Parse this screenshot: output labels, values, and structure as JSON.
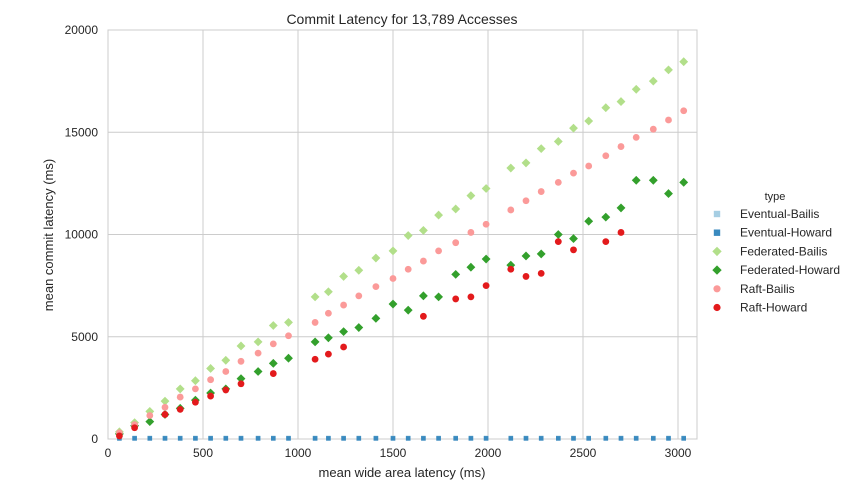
{
  "chart_data": {
    "type": "scatter",
    "title": "Commit Latency for 13,789 Accesses",
    "xlabel": "mean wide area latency (ms)",
    "ylabel": "mean commit latency (ms)",
    "xlim": [
      0,
      3100
    ],
    "ylim": [
      0,
      20000
    ],
    "xticks": [
      0,
      500,
      1000,
      1500,
      2000,
      2500,
      3000
    ],
    "yticks": [
      0,
      5000,
      10000,
      15000,
      20000
    ],
    "grid": true,
    "legend": {
      "title": "type",
      "placement": "right"
    },
    "series": [
      {
        "name": "Eventual-Bailis",
        "color": "#a6cee3",
        "marker": "square",
        "x": [
          60,
          140,
          220,
          300,
          380,
          460,
          540,
          620,
          700,
          790,
          870,
          950,
          1090,
          1160,
          1240,
          1320,
          1410,
          1500,
          1580,
          1660,
          1740,
          1830,
          1910,
          1990,
          2120,
          2200,
          2280,
          2370,
          2450,
          2530,
          2620,
          2700,
          2780,
          2870,
          2950,
          3030
        ],
        "y": [
          50,
          50,
          50,
          50,
          50,
          50,
          50,
          50,
          50,
          50,
          50,
          50,
          50,
          50,
          50,
          50,
          50,
          50,
          50,
          50,
          50,
          50,
          50,
          50,
          50,
          50,
          50,
          50,
          50,
          50,
          50,
          50,
          50,
          50,
          50,
          50
        ]
      },
      {
        "name": "Eventual-Howard",
        "color": "#3a8abf",
        "marker": "square",
        "x": [
          60,
          140,
          220,
          300,
          380,
          460,
          540,
          620,
          700,
          790,
          870,
          950,
          1090,
          1160,
          1240,
          1320,
          1410,
          1500,
          1580,
          1660,
          1740,
          1830,
          1910,
          1990,
          2120,
          2200,
          2280,
          2370,
          2450,
          2530,
          2620,
          2700,
          2780,
          2870,
          2950,
          3030
        ],
        "y": [
          30,
          30,
          30,
          30,
          30,
          30,
          30,
          30,
          30,
          30,
          30,
          30,
          30,
          30,
          30,
          30,
          30,
          30,
          30,
          30,
          30,
          30,
          30,
          30,
          30,
          30,
          30,
          30,
          30,
          30,
          30,
          30,
          30,
          30,
          30,
          30
        ]
      },
      {
        "name": "Federated-Bailis",
        "color": "#b2df8a",
        "marker": "diamond",
        "x": [
          60,
          140,
          220,
          300,
          380,
          460,
          540,
          620,
          700,
          790,
          870,
          950,
          1090,
          1160,
          1240,
          1320,
          1410,
          1500,
          1580,
          1660,
          1740,
          1830,
          1910,
          1990,
          2120,
          2200,
          2280,
          2370,
          2450,
          2530,
          2620,
          2700,
          2780,
          2870,
          2950,
          3030
        ],
        "y": [
          350,
          800,
          1350,
          1850,
          2450,
          2850,
          3450,
          3850,
          4550,
          4750,
          5550,
          5700,
          6950,
          7200,
          7950,
          8250,
          8850,
          9200,
          9950,
          10200,
          10950,
          11250,
          11900,
          12250,
          13250,
          13500,
          14200,
          14550,
          15200,
          15550,
          16200,
          16500,
          17100,
          17500,
          18050,
          18450
        ]
      },
      {
        "name": "Federated-Howard",
        "color": "#33a02c",
        "marker": "diamond",
        "x": [
          60,
          140,
          220,
          300,
          380,
          460,
          540,
          620,
          700,
          790,
          870,
          950,
          1090,
          1160,
          1240,
          1320,
          1410,
          1500,
          1580,
          1660,
          1740,
          1830,
          1910,
          1990,
          2120,
          2200,
          2280,
          2370,
          2450,
          2530,
          2620,
          2700,
          2780,
          2870,
          2950,
          3030
        ],
        "y": [
          250,
          650,
          850,
          1200,
          1500,
          1900,
          2250,
          2450,
          2950,
          3300,
          3700,
          3950,
          4750,
          4950,
          5250,
          5450,
          5900,
          6600,
          6300,
          7000,
          6950,
          8050,
          8400,
          8800,
          8500,
          8950,
          9050,
          10000,
          9800,
          10650,
          10850,
          11300,
          12650,
          12650,
          12000,
          12550
        ]
      },
      {
        "name": "Raft-Bailis",
        "color": "#fb9a99",
        "marker": "circle",
        "x": [
          60,
          140,
          220,
          300,
          380,
          460,
          540,
          620,
          700,
          790,
          870,
          950,
          1090,
          1160,
          1240,
          1320,
          1410,
          1500,
          1580,
          1660,
          1740,
          1830,
          1910,
          1990,
          2120,
          2200,
          2280,
          2370,
          2450,
          2530,
          2620,
          2700,
          2780,
          2870,
          2950,
          3030
        ],
        "y": [
          300,
          700,
          1150,
          1550,
          2050,
          2450,
          2900,
          3300,
          3800,
          4200,
          4650,
          5050,
          5700,
          6150,
          6550,
          7000,
          7450,
          7850,
          8300,
          8700,
          9200,
          9600,
          10100,
          10500,
          11200,
          11650,
          12100,
          12550,
          13000,
          13350,
          13850,
          14300,
          14750,
          15150,
          15600,
          16050
        ]
      },
      {
        "name": "Raft-Howard",
        "color": "#e31a1c",
        "marker": "circle",
        "x": [
          60,
          140,
          300,
          380,
          460,
          540,
          620,
          700,
          870,
          1090,
          1160,
          1240,
          1660,
          1830,
          1910,
          1990,
          2120,
          2200,
          2280,
          2370,
          2450,
          2620,
          2700
        ],
        "y": [
          150,
          550,
          1200,
          1450,
          1800,
          2100,
          2400,
          2700,
          3200,
          3900,
          4150,
          4500,
          6000,
          6850,
          6950,
          7500,
          8300,
          7950,
          8100,
          9650,
          9250,
          9650,
          10100
        ]
      }
    ]
  }
}
